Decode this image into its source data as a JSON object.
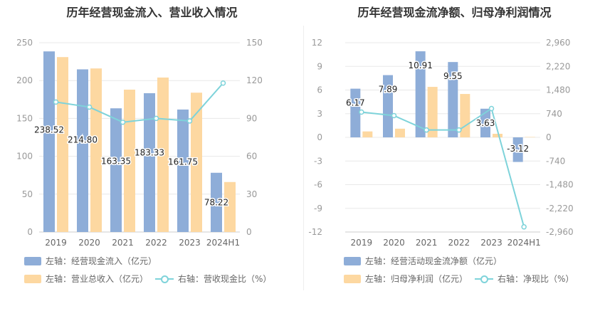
{
  "colors": {
    "blue": "#8eadd8",
    "yellow": "#fdd8a1",
    "cyan": "#7ed3da",
    "grid": "#e8e8e8",
    "axis": "#999999"
  },
  "charts": [
    {
      "title": "历年经营现金流入、营业收入情况",
      "legend": {
        "bar1": "左轴：经营现金流入（亿元）",
        "bar2": "左轴：营业总收入（亿元）",
        "line": "右轴：营收现金比（%）"
      }
    },
    {
      "title": "历年经营现金流净额、归母净利润情况",
      "legend": {
        "bar1": "左轴：经营活动现金流净额（亿元）",
        "bar2": "左轴：归母净利润（亿元）",
        "line": "右轴：净现比（%）"
      }
    }
  ],
  "chart_data": [
    {
      "type": "bar",
      "title": "历年经营现金流入、营业收入情况",
      "categories": [
        "2019",
        "2020",
        "2021",
        "2022",
        "2023",
        "2024H1"
      ],
      "series": [
        {
          "name": "左轴：经营现金流入（亿元）",
          "axis": "left",
          "values": [
            238.52,
            214.8,
            163.35,
            183.33,
            161.75,
            78.22
          ],
          "labels": [
            "238.52",
            "214.80",
            "163.35",
            "183.33",
            "161.75",
            "78.22"
          ]
        },
        {
          "name": "左轴：营业总收入（亿元）",
          "axis": "left",
          "values": [
            231,
            216,
            188,
            204,
            184,
            66
          ]
        },
        {
          "name": "右轴：营收现金比（%）",
          "axis": "right",
          "type": "line",
          "values": [
            103,
            99,
            87,
            90,
            88,
            118
          ]
        }
      ],
      "left_axis": {
        "min": 0,
        "max": 250,
        "ticks": [
          "250",
          "200",
          "150",
          "100",
          "50",
          "0"
        ]
      },
      "right_axis": {
        "min": 0,
        "max": 150,
        "ticks": [
          "150",
          "120",
          "90",
          "60",
          "30",
          "0"
        ]
      },
      "grid": true,
      "legend_position": "bottom"
    },
    {
      "type": "bar",
      "title": "历年经营现金流净额、归母净利润情况",
      "categories": [
        "2019",
        "2020",
        "2021",
        "2022",
        "2023",
        "2024H1"
      ],
      "series": [
        {
          "name": "左轴：经营活动现金流净额（亿元）",
          "axis": "left",
          "values": [
            6.17,
            7.89,
            10.91,
            9.55,
            3.63,
            -3.12
          ],
          "labels": [
            "6.17",
            "7.89",
            "10.91",
            "9.55",
            "3.63",
            "-3.12"
          ]
        },
        {
          "name": "左轴：归母净利润（亿元）",
          "axis": "left",
          "values": [
            0.75,
            1.1,
            6.4,
            5.5,
            0.45,
            0.05
          ]
        },
        {
          "name": "右轴：净现比（%）",
          "axis": "right",
          "type": "line",
          "values": [
            790,
            680,
            230,
            230,
            900,
            -2800
          ]
        }
      ],
      "left_axis": {
        "min": -12,
        "max": 12,
        "ticks": [
          "12",
          "9",
          "6",
          "3",
          "0",
          "-3",
          "-6",
          "-9",
          "-12"
        ]
      },
      "right_axis": {
        "min": -2960,
        "max": 2960,
        "ticks": [
          "2,960",
          "2,220",
          "1,480",
          "740",
          "0",
          "-740",
          "-1,480",
          "-2,220",
          "-2,960"
        ]
      },
      "grid": true,
      "legend_position": "bottom"
    }
  ]
}
